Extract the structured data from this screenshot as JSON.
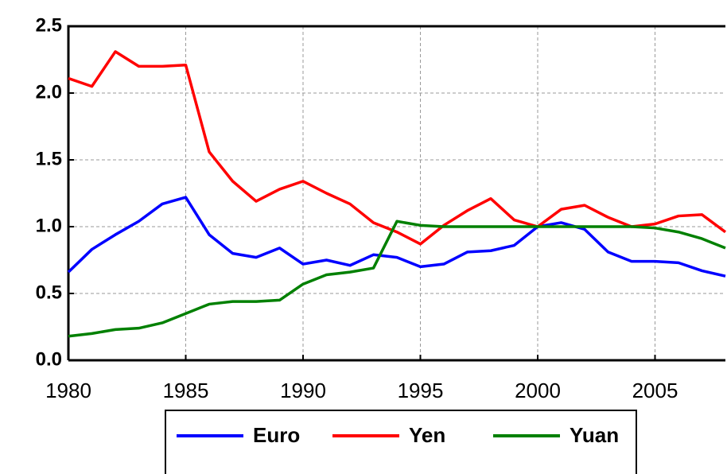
{
  "chart_data": {
    "type": "line",
    "x": [
      1980,
      1981,
      1982,
      1983,
      1984,
      1985,
      1986,
      1987,
      1988,
      1989,
      1990,
      1991,
      1992,
      1993,
      1994,
      1995,
      1996,
      1997,
      1998,
      1999,
      2000,
      2001,
      2002,
      2003,
      2004,
      2005,
      2006,
      2007,
      2008
    ],
    "series": [
      {
        "name": "Euro",
        "color": "#0000ff",
        "values": [
          0.66,
          0.83,
          0.94,
          1.04,
          1.17,
          1.22,
          0.94,
          0.8,
          0.77,
          0.84,
          0.72,
          0.75,
          0.71,
          0.79,
          0.77,
          0.7,
          0.72,
          0.81,
          0.82,
          0.86,
          1.0,
          1.03,
          0.98,
          0.81,
          0.74,
          0.74,
          0.73,
          0.67,
          0.63
        ]
      },
      {
        "name": "Yen",
        "color": "#ff0000",
        "values": [
          2.11,
          2.05,
          2.31,
          2.2,
          2.2,
          2.21,
          1.56,
          1.34,
          1.19,
          1.28,
          1.34,
          1.25,
          1.17,
          1.03,
          0.96,
          0.87,
          1.01,
          1.12,
          1.21,
          1.05,
          1.0,
          1.13,
          1.16,
          1.07,
          1.0,
          1.02,
          1.08,
          1.09,
          0.96
        ]
      },
      {
        "name": "Yuan",
        "color": "#008000",
        "values": [
          0.18,
          0.2,
          0.23,
          0.24,
          0.28,
          0.35,
          0.42,
          0.44,
          0.44,
          0.45,
          0.57,
          0.64,
          0.66,
          0.69,
          1.04,
          1.01,
          1.0,
          1.0,
          1.0,
          1.0,
          1.0,
          1.0,
          1.0,
          1.0,
          1.0,
          0.99,
          0.96,
          0.91,
          0.84
        ]
      }
    ],
    "xlim": [
      1980,
      2008
    ],
    "xticks": [
      1980,
      1985,
      1990,
      1995,
      2000,
      2005
    ],
    "ylim": [
      0,
      2.5
    ],
    "yticks": [
      {
        "value": 0,
        "label": "0.0"
      },
      {
        "value": 0.5,
        "label": "0.5"
      },
      {
        "value": 1,
        "label": "1.0"
      },
      {
        "value": 1.5,
        "label": "1.5"
      },
      {
        "value": 2,
        "label": "2.0"
      },
      {
        "value": 2.5,
        "label": "2.5"
      }
    ],
    "grid": true,
    "legend": "bottom"
  }
}
